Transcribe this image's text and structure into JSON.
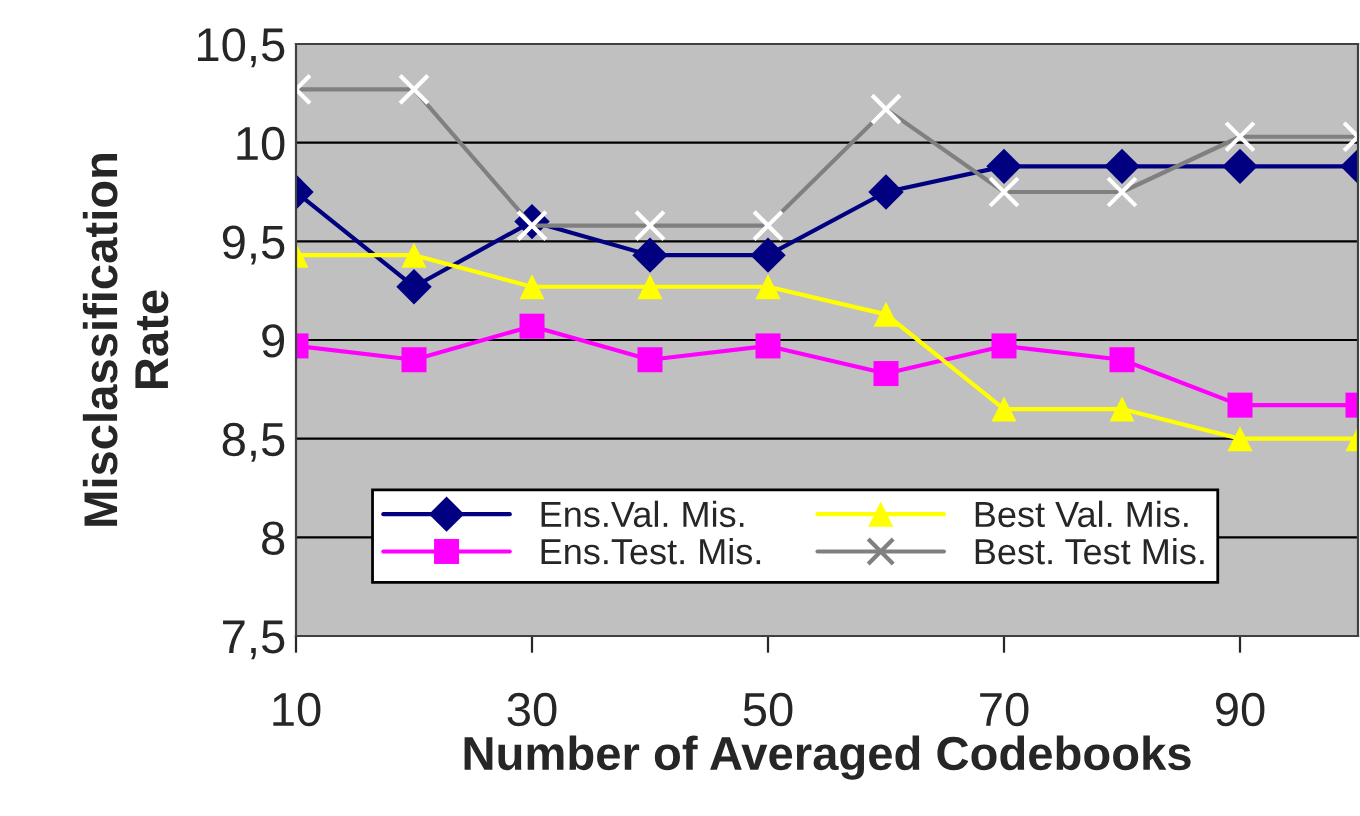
{
  "chart_data": {
    "type": "line",
    "xlabel": "Number of Averaged Codebooks",
    "ylabel": "Misclassification\nRate",
    "x": [
      10,
      20,
      30,
      40,
      50,
      60,
      70,
      80,
      90,
      100
    ],
    "series": [
      {
        "name": "Ens.Val. Mis.",
        "color": "#000080",
        "marker": "diamond",
        "values": [
          9.75,
          9.27,
          9.6,
          9.43,
          9.43,
          9.75,
          9.88,
          9.88,
          9.88,
          9.88
        ]
      },
      {
        "name": "Ens.Test. Mis.",
        "color": "#ff00ff",
        "marker": "square",
        "values": [
          8.97,
          8.9,
          9.07,
          8.9,
          8.97,
          8.83,
          8.97,
          8.9,
          8.67,
          8.67
        ]
      },
      {
        "name": "Best Val. Mis.",
        "color": "#ffff00",
        "marker": "triangle",
        "values": [
          9.43,
          9.43,
          9.27,
          9.27,
          9.27,
          9.13,
          8.65,
          8.65,
          8.5,
          8.5
        ]
      },
      {
        "name": "Best. Test Mis.",
        "color": "#808080",
        "marker": "cross",
        "values": [
          10.27,
          10.27,
          9.58,
          9.58,
          9.58,
          10.17,
          9.75,
          9.75,
          10.03,
          10.03
        ]
      }
    ],
    "xlim": [
      10,
      100
    ],
    "xticks": [
      10,
      30,
      50,
      70,
      90
    ],
    "ylim": [
      7.5,
      10.5
    ],
    "yticks": [
      {
        "value": 7.5,
        "label": "7,5"
      },
      8,
      {
        "value": 8.5,
        "label": "8,5"
      },
      9,
      {
        "value": 9.5,
        "label": "9,5"
      },
      10,
      {
        "value": 10.5,
        "label": "10,5"
      }
    ],
    "grid": "y",
    "legend": "bottom"
  }
}
